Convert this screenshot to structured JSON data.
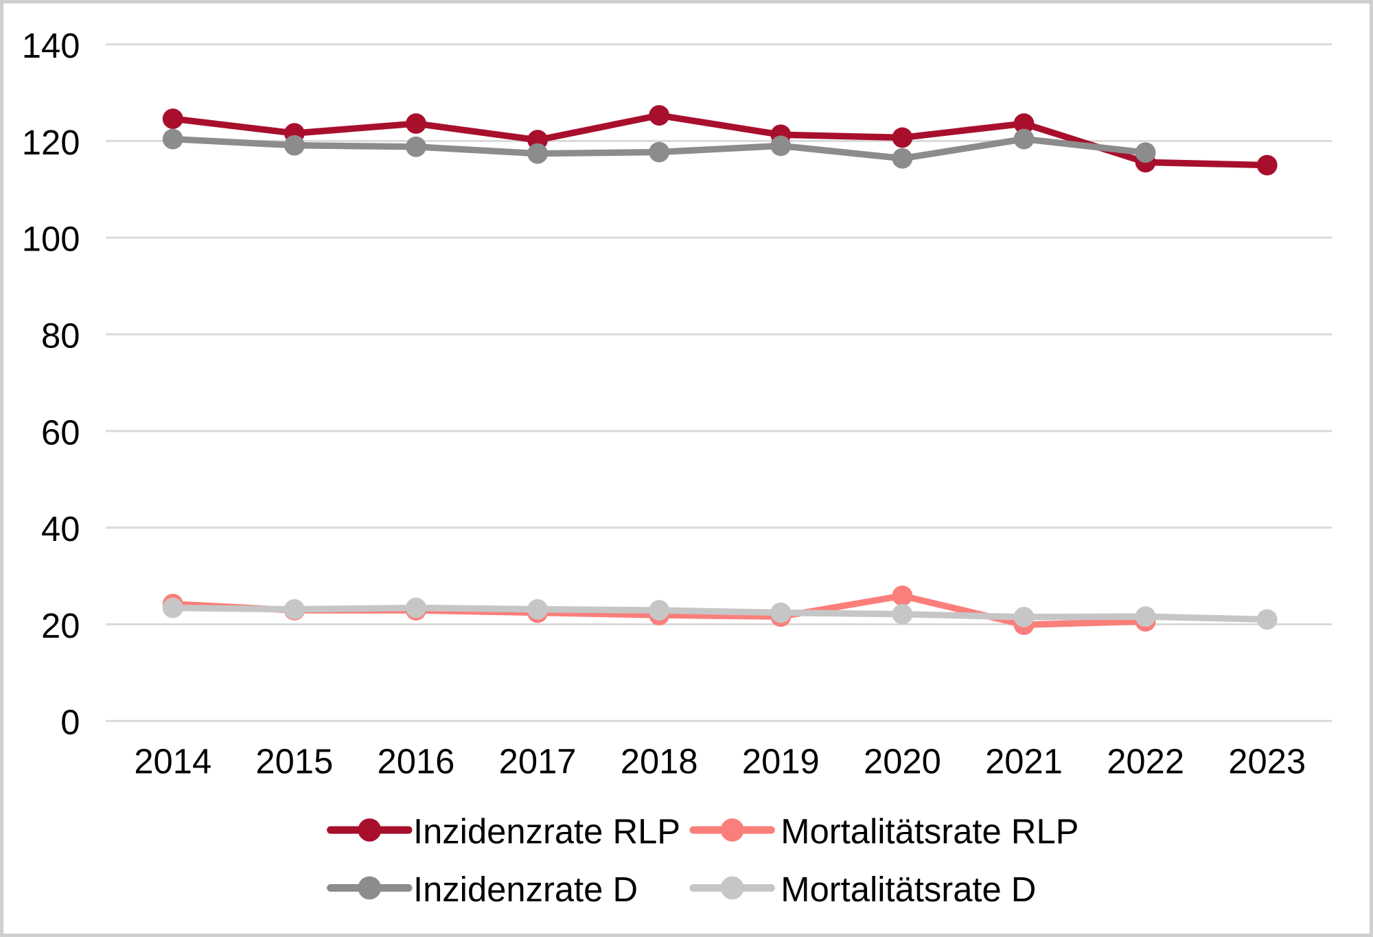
{
  "chart_data": {
    "type": "line",
    "title": "",
    "xlabel": "",
    "ylabel": "",
    "x": [
      "2014",
      "2015",
      "2016",
      "2017",
      "2018",
      "2019",
      "2020",
      "2021",
      "2022",
      "2023"
    ],
    "series": [
      {
        "name": "Inzidenzrate RLP",
        "color": "#A80F2D",
        "values": [
          124.6,
          121.6,
          123.6,
          120.2,
          125.3,
          121.3,
          120.7,
          123.6,
          115.6,
          115.0
        ]
      },
      {
        "name": "Mortalitätsrate RLP",
        "color": "#FA7E7A",
        "values": [
          24.2,
          22.9,
          22.9,
          22.4,
          21.9,
          21.6,
          25.9,
          19.9,
          20.6,
          null
        ]
      },
      {
        "name": "Inzidenzrate D",
        "color": "#8C8C8C",
        "values": [
          120.4,
          119.1,
          118.8,
          117.4,
          117.7,
          119.0,
          116.4,
          120.4,
          117.6,
          null
        ]
      },
      {
        "name": "Mortalitätsrate D",
        "color": "#C6C6C6",
        "values": [
          23.4,
          23.1,
          23.4,
          23.1,
          22.9,
          22.4,
          22.1,
          21.5,
          21.6,
          21.0
        ]
      }
    ],
    "ylim": [
      0,
      140
    ],
    "yticks": [
      0,
      20,
      40,
      60,
      80,
      100,
      120,
      140
    ],
    "grid": "horizontal",
    "marker": "circle",
    "legend_position": "bottom",
    "legend_rows": [
      [
        "Inzidenzrate RLP",
        "Mortalitätsrate RLP"
      ],
      [
        "Inzidenzrate D",
        "Mortalitätsrate D"
      ]
    ]
  },
  "colors": {
    "gridline": "#D9D9D9",
    "axis_text": "#000000",
    "frame_border": "#CFCFCF",
    "background": "#FFFFFF"
  }
}
